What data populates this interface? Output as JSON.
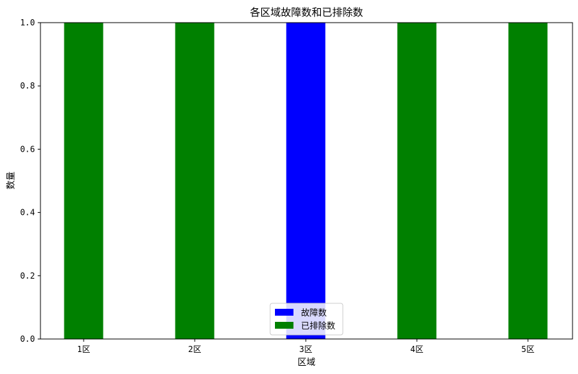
{
  "chart_data": {
    "type": "bar",
    "title": "各区域故障数和已排除数",
    "xlabel": "区域",
    "ylabel": "数量",
    "categories": [
      "1区",
      "2区",
      "3区",
      "4区",
      "5区"
    ],
    "ylim": [
      0,
      1
    ],
    "yticks": [
      "0.0",
      "0.2",
      "0.4",
      "0.6",
      "0.8",
      "1.0"
    ],
    "grid": false,
    "legend_position": "bottom-center",
    "series": [
      {
        "name": "故障数",
        "color": "#0000ff",
        "values": [
          0,
          0,
          1,
          0,
          0
        ]
      },
      {
        "name": "已排除数",
        "color": "#008000",
        "values": [
          1,
          1,
          0,
          1,
          1
        ]
      }
    ]
  }
}
